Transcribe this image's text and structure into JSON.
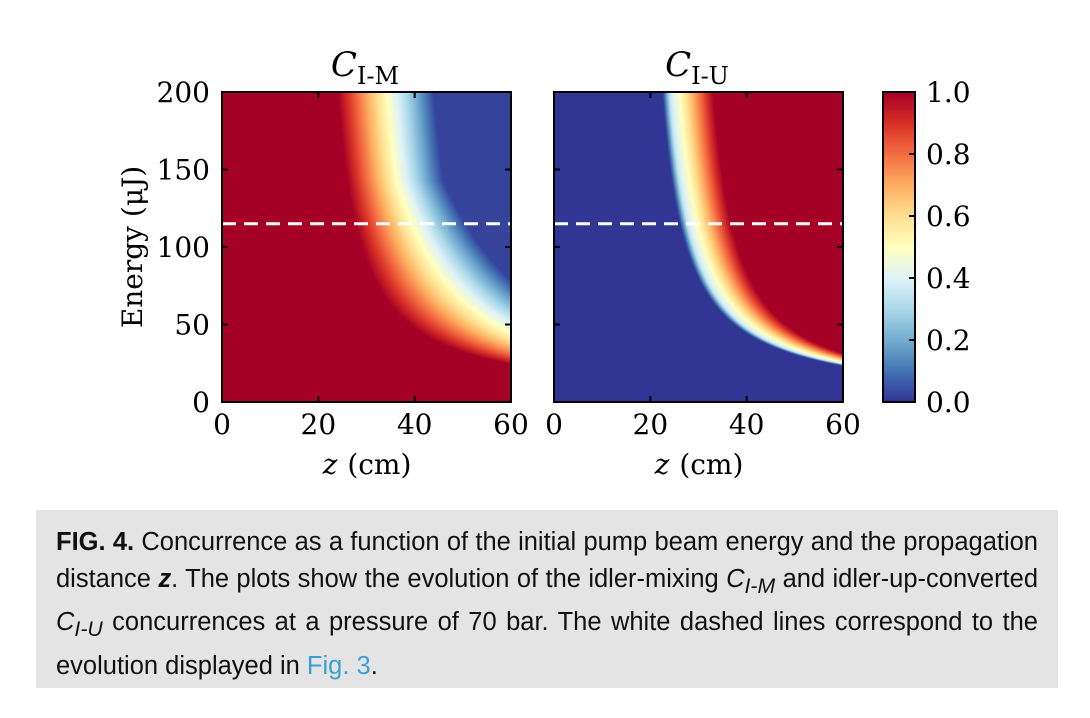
{
  "chart_data": [
    {
      "type": "heatmap",
      "title_main": "C",
      "title_sub": "I-M",
      "xlabel_var": "z",
      "xlabel_unit": "(cm)",
      "ylabel": "Energy (μJ)",
      "xlim": [
        0,
        60
      ],
      "ylim": [
        0,
        200
      ],
      "xticks": [
        "0",
        "20",
        "40",
        "60"
      ],
      "yticks": [
        "0",
        "50",
        "100",
        "150",
        "200"
      ],
      "dashed_line_energy": 115
    },
    {
      "type": "heatmap",
      "title_main": "C",
      "title_sub": "I-U",
      "xlabel_var": "z",
      "xlabel_unit": "(cm)",
      "xlim": [
        0,
        60
      ],
      "ylim": [
        0,
        200
      ],
      "xticks": [
        "0",
        "20",
        "40",
        "60"
      ],
      "dashed_line_energy": 115
    }
  ],
  "colorbar": {
    "range": [
      0.0,
      1.0
    ],
    "ticks": [
      "0.0",
      "0.2",
      "0.4",
      "0.6",
      "0.8",
      "1.0"
    ],
    "colormap": [
      "#313695",
      "#4575b4",
      "#74add1",
      "#abd9e9",
      "#e0f3f8",
      "#ffffbf",
      "#fee090",
      "#fdae61",
      "#f46d43",
      "#d73027",
      "#a50026"
    ]
  },
  "caption": {
    "label": "FIG. 4.",
    "p1": " Concurrence as a function of the initial pump beam energy and the propagation distance ",
    "z": "z",
    "p2": ". The plots show the evolution of the idler-mixing ",
    "c1": "C",
    "c1_sub": "I-M",
    "p3": " and idler-up-converted ",
    "c2": "C",
    "c2_sub": "I-U",
    "p4": " concurrences at a pressure of 70 bar. The white dashed lines correspond to the evolution displayed in ",
    "link": "Fig. 3",
    "p5": "."
  }
}
